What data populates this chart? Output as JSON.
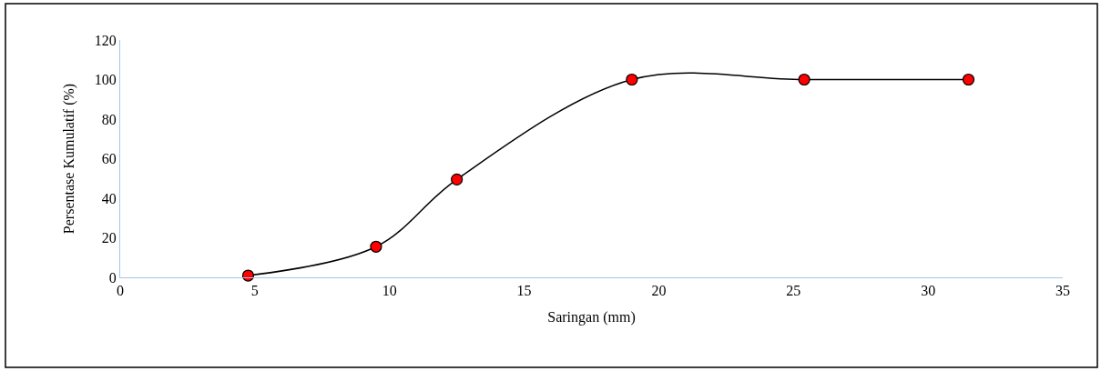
{
  "chart_data": {
    "type": "line",
    "xlabel": "Saringan (mm)",
    "ylabel": "Persentase Kumulatif (%)",
    "x": [
      4.75,
      9.5,
      12.5,
      19,
      25.4,
      31.5
    ],
    "series": [
      {
        "color": "#ff0000",
        "values": [
          0.9,
          15.5,
          49.5,
          100,
          100,
          100
        ]
      }
    ],
    "xlim": [
      0,
      35
    ],
    "xticks": [
      0,
      5,
      10,
      15,
      20,
      25,
      30,
      35
    ],
    "ylim": [
      0,
      120
    ],
    "yticks": [
      0,
      20,
      40,
      60,
      80,
      100,
      120
    ],
    "marker": "circle",
    "line_style": "solid"
  }
}
